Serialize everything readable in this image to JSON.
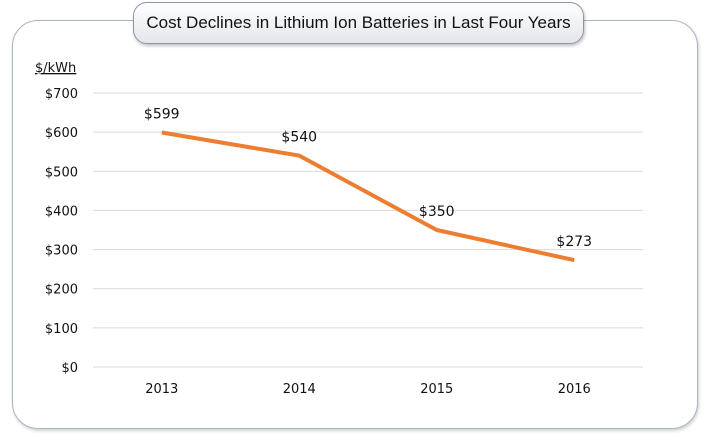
{
  "chart_data": {
    "type": "line",
    "title": "Cost Declines in Lithium Ion Batteries in Last Four Years",
    "ylabel": "$/kWh",
    "xlabel": "",
    "categories": [
      "2013",
      "2014",
      "2015",
      "2016"
    ],
    "values": [
      599,
      540,
      350,
      273
    ],
    "data_labels": [
      "$599",
      "$540",
      "$350",
      "$273"
    ],
    "ylim": [
      0,
      700
    ],
    "yticks": [
      0,
      100,
      200,
      300,
      400,
      500,
      600,
      700
    ],
    "ytick_labels": [
      "$0",
      "$100",
      "$200",
      "$300",
      "$400",
      "$500",
      "$600",
      "$700"
    ],
    "grid": true,
    "legend": "none",
    "line_color": "#ED7D31",
    "grid_color": "#d9d9d9"
  }
}
